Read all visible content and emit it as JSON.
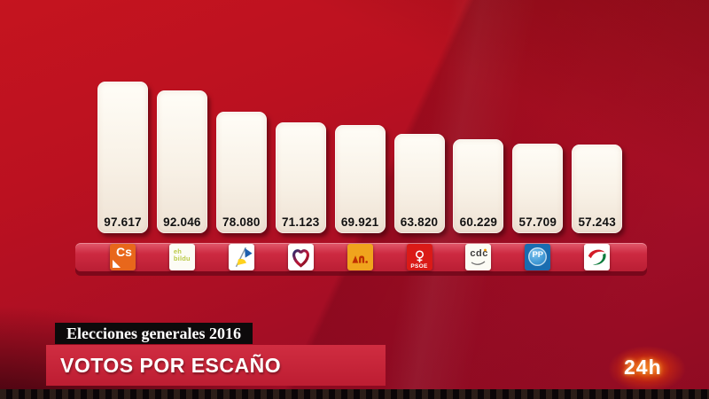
{
  "titles": {
    "kicker": "Elecciones generales 2016",
    "headline": "VOTOS POR ESCAÑO"
  },
  "channel": {
    "logo_text": "24h",
    "glow_color": "#ff7300"
  },
  "colors": {
    "background_red": "#b2101f",
    "band_red": "#c32438",
    "bar_cream": "#f7f0e4",
    "headline_bar_red": "#c52537",
    "kicker_bar_black": "#0d0a0b",
    "value_text": "#121212"
  },
  "chart_data": {
    "type": "bar",
    "title": "VOTOS POR ESCAÑO",
    "subtitle": "Elecciones generales 2016",
    "categories": [
      "Cs",
      "EH Bildu",
      "CCa",
      "En Comú Podem",
      "ERC",
      "PSOE",
      "CDC",
      "PP",
      "EAJ-PNV"
    ],
    "values": [
      97617,
      92046,
      78080,
      71123,
      69921,
      63820,
      60229,
      57709,
      57243
    ],
    "value_labels": [
      "97.617",
      "92.046",
      "78.080",
      "71.123",
      "69.921",
      "63.820",
      "60.229",
      "57.709",
      "57.243"
    ],
    "ylim": [
      0,
      100000
    ],
    "grid": false,
    "legend": false,
    "bar_color": "#f7f0e4",
    "party_logos": [
      "cs-logo",
      "ehbildu-logo",
      "cca-logo",
      "ecp-heart-logo",
      "erc-logo",
      "psoe-logo",
      "cdc-logo",
      "pp-logo",
      "pnv-logo"
    ],
    "logo_texts": {
      "cs": "Cs",
      "ehbildu_line1": "eh",
      "ehbildu_line2": "bildu",
      "psoe": "PSOE",
      "cdc": "cdc",
      "pp": "PP"
    }
  }
}
